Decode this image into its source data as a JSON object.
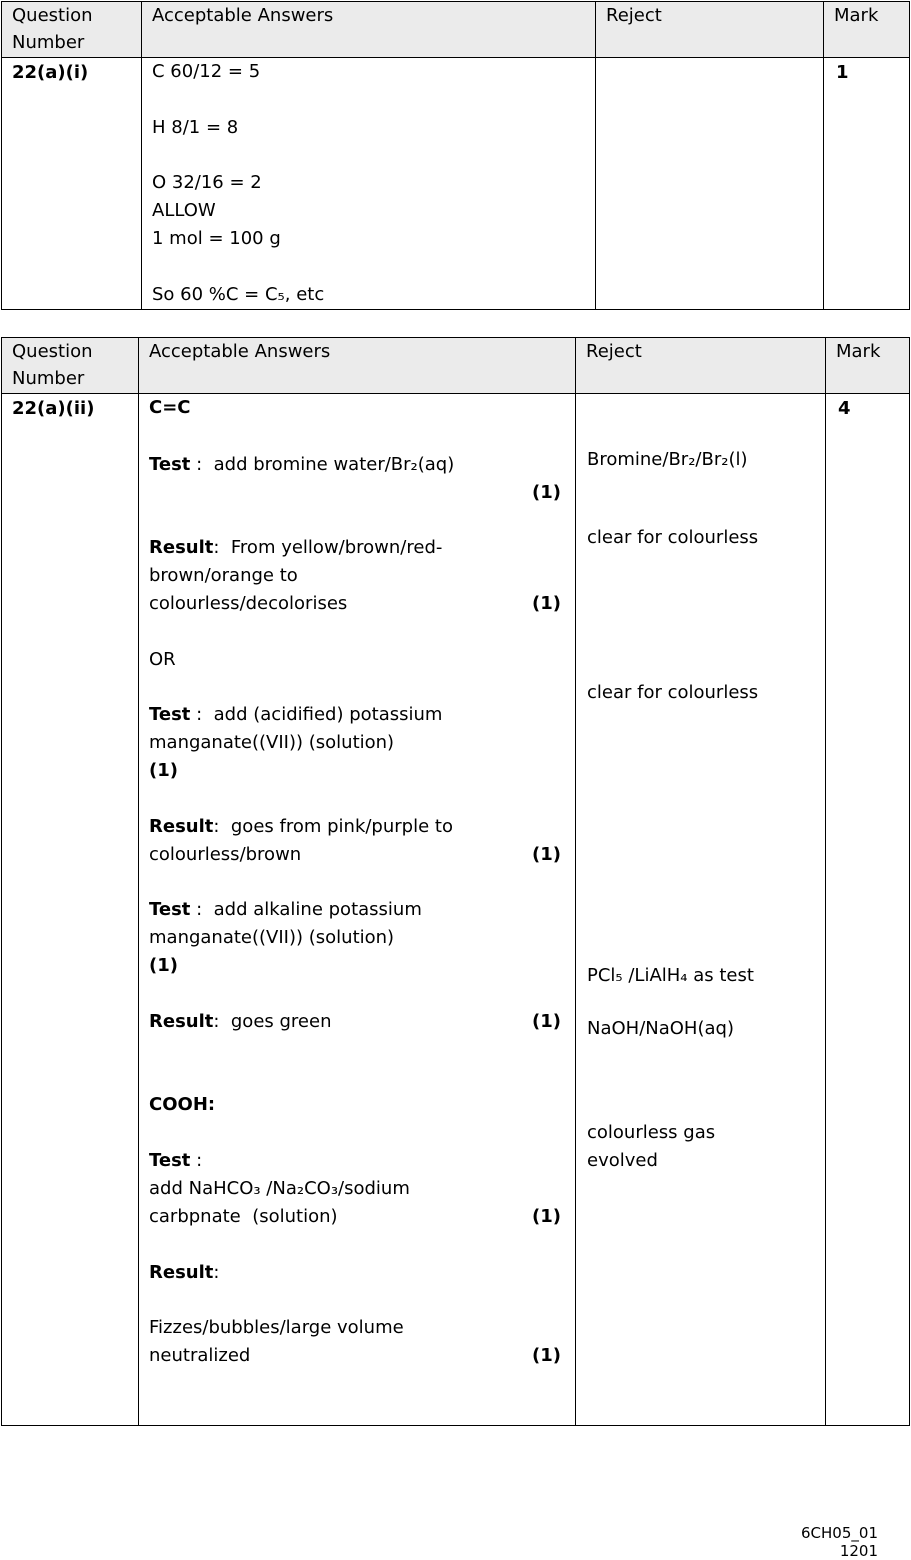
{
  "table1": {
    "header": [
      "Question Number",
      "Acceptable Answers",
      "Reject",
      "Mark"
    ],
    "question": "22(a)(i)",
    "answers": [
      "C 60/12 = 5",
      "H 8/1 = 8",
      "O 32/16 = 2",
      "ALLOW",
      "1 mol = 100 g",
      "So 60 %C = C₅, etc"
    ],
    "mark": "1"
  },
  "table2": {
    "header": [
      "Question Number",
      "Acceptable Answers",
      "Reject",
      "Mark"
    ],
    "question": "22(a)(ii)",
    "answers": [
      {
        "bold": "C=C"
      },
      {
        "bold": "Test",
        "text": " :  add bromine water/Br₂(aq)"
      },
      {
        "mark": "(1)"
      },
      {
        "bold": "Result",
        "text": ":  From yellow/brown/red-"
      },
      {
        "text": "brown/orange to"
      },
      {
        "text": "colourless/decolorises",
        "mark": "(1)"
      },
      {
        "text": "OR"
      },
      {
        "bold": "Test",
        "text": " :  add (acidified) potassium"
      },
      {
        "text": "manganate((VII)) (solution)"
      },
      {
        "bold": "(1)"
      },
      {
        "bold": "Result",
        "text": ":  goes from pink/purple to"
      },
      {
        "text": "colourless/brown",
        "mark": "(1)"
      },
      {
        "bold": "Test",
        "text": " :  add alkaline potassium"
      },
      {
        "text": "manganate((VII)) (solution)"
      },
      {
        "bold": "(1)"
      },
      {
        "bold": "Result",
        "text": ":  goes green",
        "mark": "(1)"
      },
      {
        "bold": "COOH:"
      },
      {
        "bold": "Test",
        "text": " :"
      },
      {
        "text": "add NaHCO₃ /Na₂CO₃/sodium"
      },
      {
        "text": "carbpnate  (solution)",
        "mark": "(1)"
      },
      {
        "bold": "Result",
        "text": ":"
      },
      {
        "text": "Fizzes/bubbles/large volume"
      },
      {
        "text": "neutralized",
        "mark": "(1)"
      }
    ],
    "reject": [
      "Bromine/Br₂/Br₂(l)",
      "clear for colourless",
      "clear for colourless",
      "PCl₅ /LiAlH₄ as test",
      "NaOH/NaOH(aq)",
      "colourless gas",
      "evolved"
    ],
    "mark": "4"
  },
  "footer": [
    "6CH05_01",
    "1201"
  ]
}
